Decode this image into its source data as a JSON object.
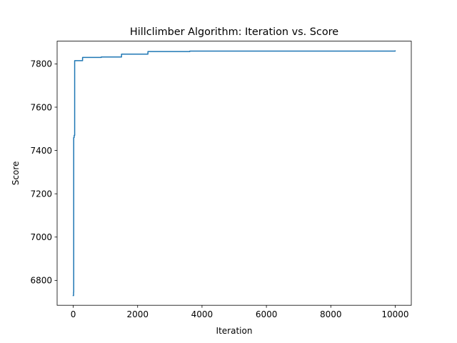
{
  "chart_data": {
    "type": "line",
    "title": "Hillclimber Algorithm: Iteration vs. Score",
    "xlabel": "Iteration",
    "ylabel": "Score",
    "xlim": [
      -500,
      10500
    ],
    "ylim": [
      6685,
      7905
    ],
    "grid": false,
    "legend": "none",
    "x_ticks": [
      0,
      2000,
      4000,
      6000,
      8000,
      10000
    ],
    "y_ticks": [
      6800,
      7000,
      7200,
      7400,
      7600,
      7800
    ],
    "series": [
      {
        "color": "#1f77b4",
        "step": "post",
        "points": [
          [
            0,
            6730
          ],
          [
            10,
            6745
          ],
          [
            15,
            7460
          ],
          [
            30,
            7470
          ],
          [
            45,
            7815
          ],
          [
            280,
            7815
          ],
          [
            290,
            7830
          ],
          [
            850,
            7830
          ],
          [
            870,
            7832
          ],
          [
            1480,
            7832
          ],
          [
            1500,
            7845
          ],
          [
            2300,
            7845
          ],
          [
            2320,
            7857
          ],
          [
            3600,
            7857
          ],
          [
            3620,
            7859
          ],
          [
            10000,
            7860
          ]
        ]
      }
    ]
  }
}
